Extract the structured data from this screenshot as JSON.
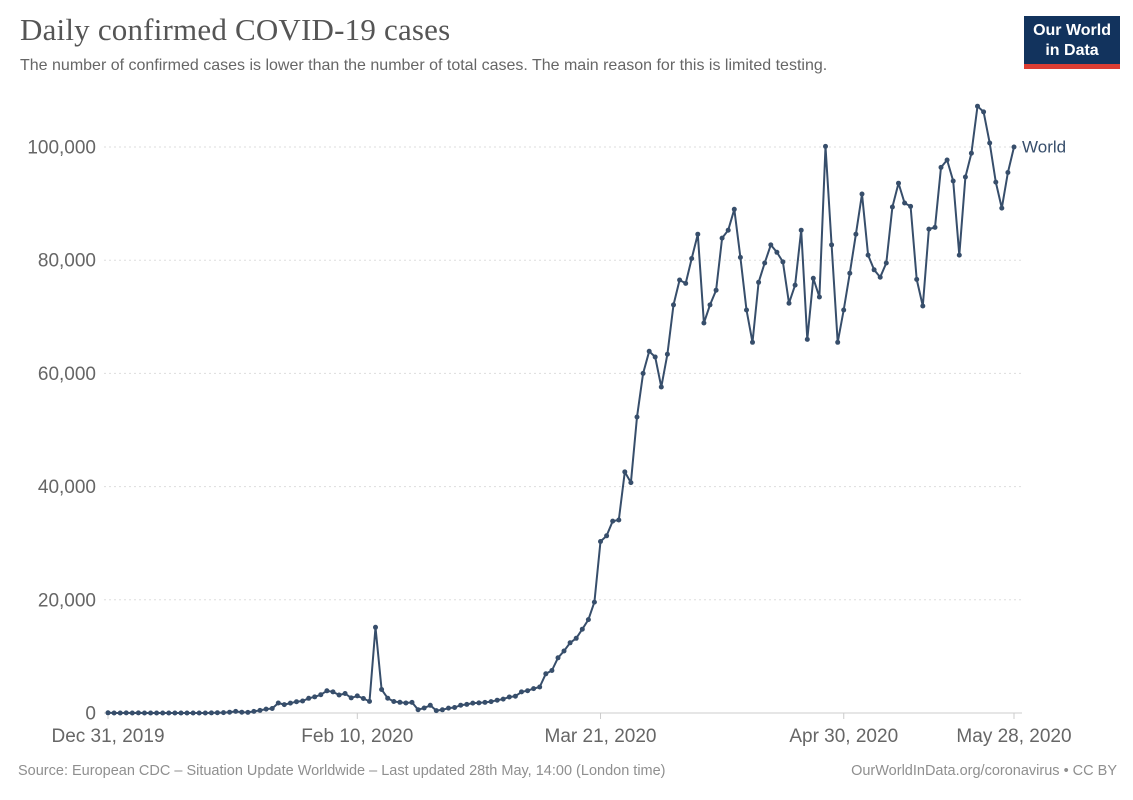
{
  "header": {
    "title": "Daily confirmed COVID-19 cases",
    "subtitle": "The number of confirmed cases is lower than the number of total cases. The main reason for this is limited testing."
  },
  "logo": {
    "line1": "Our World",
    "line2": "in Data",
    "bg_color": "#12335d",
    "bar_color": "#dc3d33"
  },
  "chart_data": {
    "type": "line",
    "title": "Daily confirmed COVID-19 cases",
    "xlabel": "",
    "ylabel": "",
    "ylim": [
      0,
      110000
    ],
    "grid": "horizontal-dashed",
    "legend_position": "end-of-line-label",
    "end_label": "World",
    "y_ticks": [
      {
        "value": 0,
        "label": "0"
      },
      {
        "value": 20000,
        "label": "20,000"
      },
      {
        "value": 40000,
        "label": "40,000"
      },
      {
        "value": 60000,
        "label": "60,000"
      },
      {
        "value": 80000,
        "label": "80,000"
      },
      {
        "value": 100000,
        "label": "100,000"
      }
    ],
    "x_tick_labels": [
      {
        "date_index": 0,
        "label": "Dec 31, 2019"
      },
      {
        "date_index": 41,
        "label": "Feb 10, 2020"
      },
      {
        "date_index": 81,
        "label": "Mar 21, 2020"
      },
      {
        "date_index": 121,
        "label": "Apr 30, 2020"
      },
      {
        "date_index": 149,
        "label": "May 28, 2020"
      }
    ],
    "series": [
      {
        "name": "World",
        "color": "#374e6b",
        "dates": [
          "2019-12-31",
          "2020-01-01",
          "2020-01-02",
          "2020-01-03",
          "2020-01-04",
          "2020-01-05",
          "2020-01-06",
          "2020-01-07",
          "2020-01-08",
          "2020-01-09",
          "2020-01-10",
          "2020-01-11",
          "2020-01-12",
          "2020-01-13",
          "2020-01-14",
          "2020-01-15",
          "2020-01-16",
          "2020-01-17",
          "2020-01-18",
          "2020-01-19",
          "2020-01-20",
          "2020-01-21",
          "2020-01-22",
          "2020-01-23",
          "2020-01-24",
          "2020-01-25",
          "2020-01-26",
          "2020-01-27",
          "2020-01-28",
          "2020-01-29",
          "2020-01-30",
          "2020-01-31",
          "2020-02-01",
          "2020-02-02",
          "2020-02-03",
          "2020-02-04",
          "2020-02-05",
          "2020-02-06",
          "2020-02-07",
          "2020-02-08",
          "2020-02-09",
          "2020-02-10",
          "2020-02-11",
          "2020-02-12",
          "2020-02-13",
          "2020-02-14",
          "2020-02-15",
          "2020-02-16",
          "2020-02-17",
          "2020-02-18",
          "2020-02-19",
          "2020-02-20",
          "2020-02-21",
          "2020-02-22",
          "2020-02-23",
          "2020-02-24",
          "2020-02-25",
          "2020-02-26",
          "2020-02-27",
          "2020-02-28",
          "2020-02-29",
          "2020-03-01",
          "2020-03-02",
          "2020-03-03",
          "2020-03-04",
          "2020-03-05",
          "2020-03-06",
          "2020-03-07",
          "2020-03-08",
          "2020-03-09",
          "2020-03-10",
          "2020-03-11",
          "2020-03-12",
          "2020-03-13",
          "2020-03-14",
          "2020-03-15",
          "2020-03-16",
          "2020-03-17",
          "2020-03-18",
          "2020-03-19",
          "2020-03-20",
          "2020-03-21",
          "2020-03-22",
          "2020-03-23",
          "2020-03-24",
          "2020-03-25",
          "2020-03-26",
          "2020-03-27",
          "2020-03-28",
          "2020-03-29",
          "2020-03-30",
          "2020-03-31",
          "2020-04-01",
          "2020-04-02",
          "2020-04-03",
          "2020-04-04",
          "2020-04-05",
          "2020-04-06",
          "2020-04-07",
          "2020-04-08",
          "2020-04-09",
          "2020-04-10",
          "2020-04-11",
          "2020-04-12",
          "2020-04-13",
          "2020-04-14",
          "2020-04-15",
          "2020-04-16",
          "2020-04-17",
          "2020-04-18",
          "2020-04-19",
          "2020-04-20",
          "2020-04-21",
          "2020-04-22",
          "2020-04-23",
          "2020-04-24",
          "2020-04-25",
          "2020-04-26",
          "2020-04-27",
          "2020-04-28",
          "2020-04-29",
          "2020-04-30",
          "2020-05-01",
          "2020-05-02",
          "2020-05-03",
          "2020-05-04",
          "2020-05-05",
          "2020-05-06",
          "2020-05-07",
          "2020-05-08",
          "2020-05-09",
          "2020-05-10",
          "2020-05-11",
          "2020-05-12",
          "2020-05-13",
          "2020-05-14",
          "2020-05-15",
          "2020-05-16",
          "2020-05-17",
          "2020-05-18",
          "2020-05-19",
          "2020-05-20",
          "2020-05-21",
          "2020-05-22",
          "2020-05-23",
          "2020-05-24",
          "2020-05-25",
          "2020-05-26",
          "2020-05-27",
          "2020-05-28"
        ],
        "values": [
          27,
          0,
          0,
          17,
          0,
          15,
          0,
          0,
          0,
          0,
          0,
          0,
          0,
          1,
          1,
          0,
          4,
          17,
          59,
          77,
          139,
          278,
          141,
          99,
          287,
          463,
          691,
          787,
          1766,
          1478,
          1757,
          2000,
          2127,
          2603,
          2836,
          3239,
          3927,
          3730,
          3179,
          3440,
          2676,
          3015,
          2560,
          2055,
          15141,
          4156,
          2615,
          2024,
          1891,
          1775,
          1878,
          585,
          884,
          1358,
          431,
          569,
          871,
          980,
          1370,
          1519,
          1742,
          1785,
          1872,
          2015,
          2270,
          2449,
          2819,
          2963,
          3722,
          3948,
          4311,
          4588,
          6930,
          7502,
          9751,
          10955,
          12400,
          13200,
          14800,
          16500,
          19600,
          30300,
          31300,
          33900,
          34100,
          42600,
          40700,
          52300,
          60000,
          63900,
          62900,
          57600,
          63400,
          72100,
          76500,
          75900,
          80300,
          84600,
          68900,
          72100,
          74700,
          83900,
          85300,
          89000,
          80500,
          71200,
          65500,
          76100,
          79500,
          82700,
          81400,
          79700,
          72400,
          75600,
          85300,
          66000,
          76800,
          73500,
          100100,
          82700,
          65500,
          71200,
          77700,
          84600,
          91700,
          80900,
          78300,
          77000,
          79500,
          89400,
          93600,
          90100,
          89500,
          76600,
          71900,
          85500,
          85800,
          96400,
          97700,
          94000,
          80900,
          94700,
          98900,
          107200,
          106200,
          100700,
          93800,
          89200,
          95500,
          100000
        ]
      }
    ]
  },
  "footer": {
    "source": "Source: European CDC – Situation Update Worldwide – Last updated 28th May, 14:00 (London time)",
    "link": "OurWorldInData.org/coronavirus • CC BY"
  },
  "style": {
    "axis_label_color": "#666666",
    "gridline_color": "#dddddd",
    "axis_line_color": "#cccccc"
  }
}
